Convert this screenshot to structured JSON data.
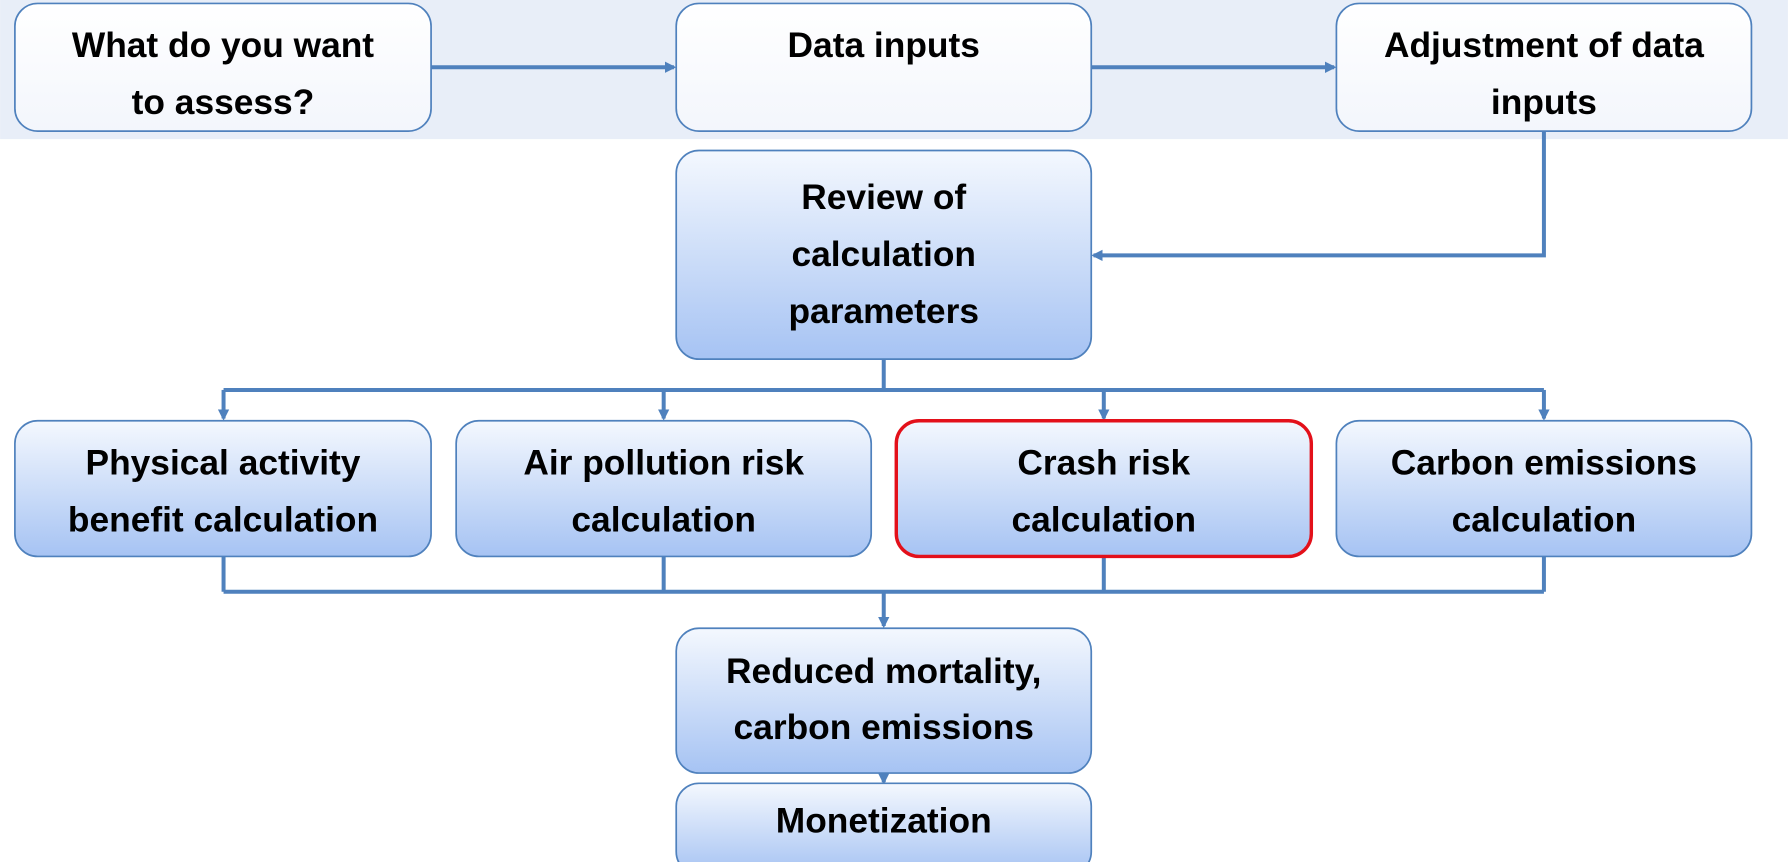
{
  "nodes": [
    {
      "lines": [
        "What do you want",
        "to assess?"
      ]
    },
    {
      "lines": [
        "Data inputs"
      ]
    },
    {
      "lines": [
        "Adjustment of data",
        "inputs"
      ]
    },
    {
      "lines": [
        "Review of",
        "calculation",
        "parameters"
      ]
    },
    {
      "lines": [
        "Physical activity",
        "benefit calculation"
      ]
    },
    {
      "lines": [
        "Air pollution risk",
        "calculation"
      ]
    },
    {
      "lines": [
        "Crash risk",
        "calculation"
      ]
    },
    {
      "lines": [
        "Carbon emissions",
        "calculation"
      ]
    },
    {
      "lines": [
        "Reduced mortality,",
        "carbon emissions"
      ]
    },
    {
      "lines": [
        "Monetization"
      ]
    }
  ]
}
